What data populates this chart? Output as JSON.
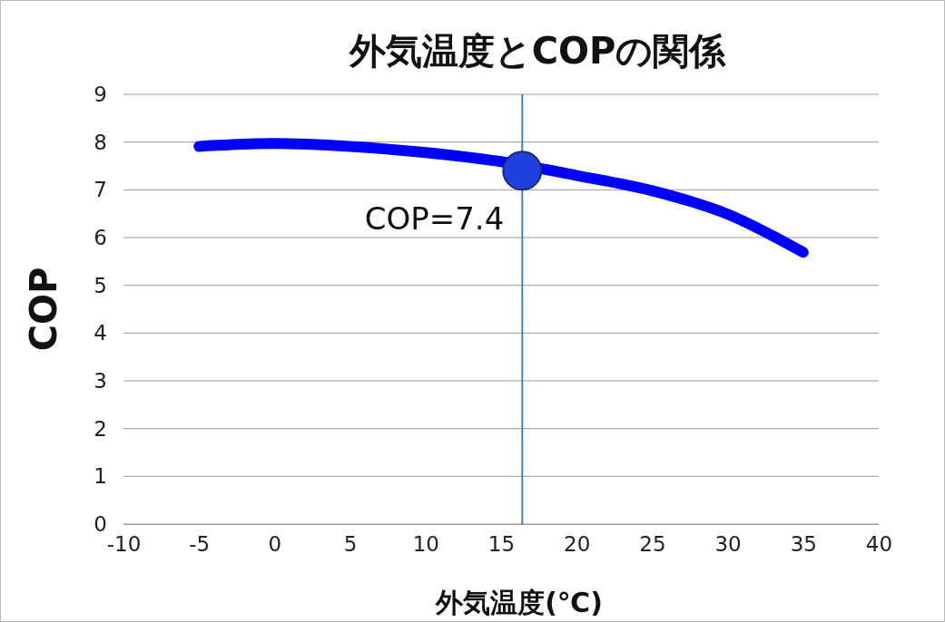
{
  "chart_data": {
    "type": "line",
    "title": "外気温度とCOPの関係",
    "xlabel": "外気温度(℃)",
    "ylabel": "COP",
    "xlim": [
      -10,
      40
    ],
    "xticks": [
      -10,
      -5,
      0,
      5,
      10,
      15,
      20,
      25,
      30,
      35,
      40
    ],
    "ylim": [
      0,
      9
    ],
    "yticks": [
      0,
      1,
      2,
      3,
      4,
      5,
      6,
      7,
      8,
      9
    ],
    "grid": "y",
    "series": [
      {
        "color": "#0000ff",
        "x": [
          -5,
          0,
          5,
          10,
          15,
          20,
          25,
          30,
          35
        ],
        "values": [
          7.91,
          7.97,
          7.91,
          7.78,
          7.59,
          7.3,
          6.98,
          6.49,
          5.69
        ]
      },
      {
        "type": "scatter",
        "color": "#1f3fe0",
        "x": [
          16.4
        ],
        "values": [
          7.4
        ]
      }
    ],
    "ref_lines": [
      {
        "axis": "x",
        "value": 16.4,
        "color": "#4a7ebb"
      }
    ],
    "annotations": [
      {
        "text": "COP=7.4",
        "x": 16.4,
        "y": 7.4
      }
    ]
  }
}
